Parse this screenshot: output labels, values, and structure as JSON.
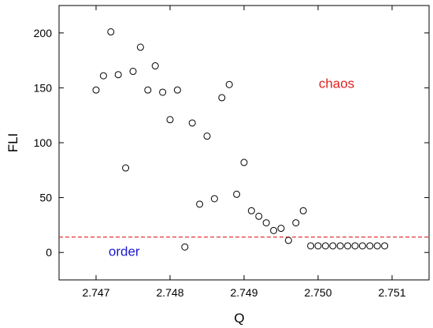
{
  "chart_data": {
    "type": "scatter",
    "xlabel": "Q",
    "ylabel": "FLI",
    "xlim": [
      2.7465,
      2.7515
    ],
    "ylim": [
      -25,
      225
    ],
    "xticks": [
      2.747,
      2.748,
      2.749,
      2.75,
      2.751
    ],
    "xtick_labels": [
      "2.747",
      "2.748",
      "2.749",
      "2.750",
      "2.751"
    ],
    "yticks": [
      0,
      50,
      100,
      150,
      200
    ],
    "ytick_labels": [
      "0",
      "50",
      "100",
      "150",
      "200"
    ],
    "grid": false,
    "marker": "open-circle",
    "series": [
      {
        "x": [
          2.747,
          2.7471,
          2.7472,
          2.7473,
          2.7474,
          2.7475,
          2.7476,
          2.7477,
          2.7478,
          2.7479,
          2.748,
          2.7481,
          2.7482,
          2.7483,
          2.7484,
          2.7485,
          2.7486,
          2.7487,
          2.7488,
          2.7489,
          2.749,
          2.7491,
          2.7492,
          2.7493,
          2.7494,
          2.7495,
          2.7496,
          2.7497,
          2.7498,
          2.7499,
          2.75,
          2.7501,
          2.7502,
          2.7503,
          2.7504,
          2.7505,
          2.7506,
          2.7507,
          2.7508,
          2.7509
        ],
        "y": [
          148,
          161,
          201,
          162,
          77,
          165,
          187,
          148,
          170,
          146,
          121,
          148,
          5,
          118,
          44,
          106,
          49,
          141,
          153,
          53,
          82,
          38,
          33,
          27,
          20,
          22,
          11,
          27,
          38,
          6,
          6,
          6,
          6,
          6,
          6,
          6,
          6,
          6,
          6,
          6
        ],
        "color": "#000000"
      }
    ],
    "threshold": {
      "y": 14,
      "color": "#e02020",
      "style": "dashed"
    },
    "annotations": [
      {
        "text": "chaos",
        "x": 2.75025,
        "y": 150,
        "color": "#e02020"
      },
      {
        "text": "order",
        "x": 2.74738,
        "y": -3,
        "color": "#1a1acc"
      }
    ]
  }
}
